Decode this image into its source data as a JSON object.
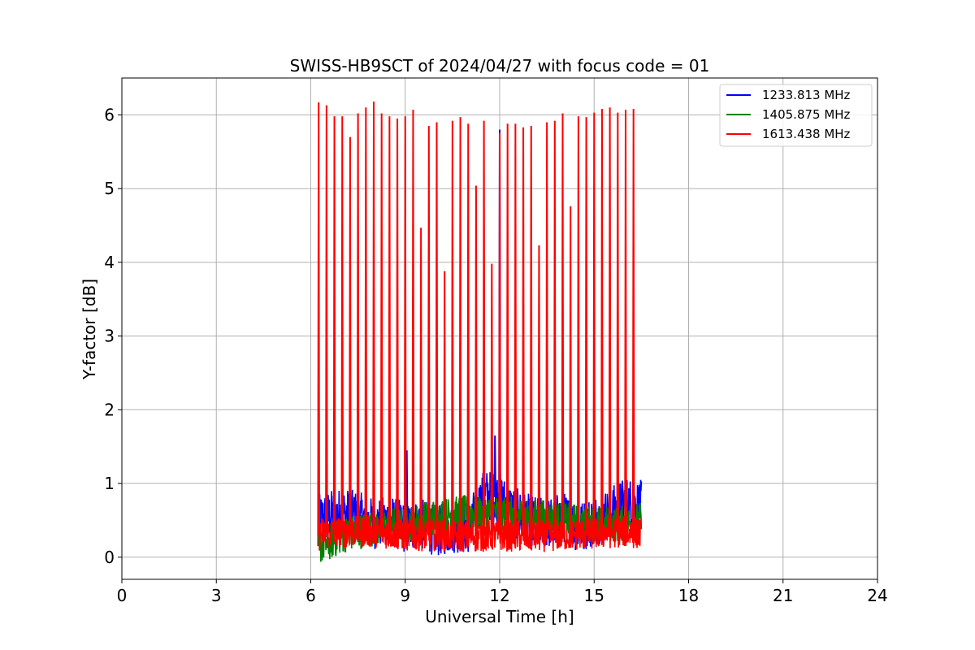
{
  "chart_data": {
    "type": "line",
    "title": "SWISS-HB9SCT of 2024/04/27 with focus code = 01",
    "xlabel": "Universal Time [h]",
    "ylabel": "Y-factor [dB]",
    "xlim": [
      0,
      24
    ],
    "ylim": [
      -0.3,
      6.5
    ],
    "xticks": [
      0,
      3,
      6,
      9,
      12,
      15,
      18,
      21,
      24
    ],
    "yticks": [
      0,
      1,
      2,
      3,
      4,
      5,
      6
    ],
    "grid": true,
    "legend_position": "top-right",
    "data_range": [
      6.25,
      16.5
    ],
    "series": [
      {
        "name": "1233.813 MHz",
        "color": "#0000ff",
        "profile": [
          [
            6.25,
            0.5
          ],
          [
            6.5,
            0.55
          ],
          [
            7.0,
            0.6
          ],
          [
            7.5,
            0.55
          ],
          [
            8.0,
            0.45
          ],
          [
            8.5,
            0.5
          ],
          [
            9.0,
            0.4
          ],
          [
            9.5,
            0.45
          ],
          [
            10.0,
            0.35
          ],
          [
            10.5,
            0.4
          ],
          [
            11.0,
            0.4
          ],
          [
            11.5,
            0.85
          ],
          [
            12.0,
            0.8
          ],
          [
            12.5,
            0.6
          ],
          [
            13.0,
            0.5
          ],
          [
            13.5,
            0.45
          ],
          [
            14.0,
            0.55
          ],
          [
            14.5,
            0.4
          ],
          [
            15.0,
            0.5
          ],
          [
            15.5,
            0.6
          ],
          [
            16.0,
            0.75
          ],
          [
            16.5,
            0.7
          ]
        ],
        "spread": 0.35,
        "spikes": [
          {
            "x": 12.0,
            "y": 5.8
          },
          {
            "x": 11.85,
            "y": 1.65
          },
          {
            "x": 9.05,
            "y": 1.45
          }
        ]
      },
      {
        "name": "1405.875 MHz",
        "color": "#008000",
        "profile": [
          [
            6.25,
            0.15
          ],
          [
            6.6,
            0.2
          ],
          [
            7.0,
            0.3
          ],
          [
            8.0,
            0.4
          ],
          [
            9.0,
            0.45
          ],
          [
            10.0,
            0.55
          ],
          [
            11.0,
            0.6
          ],
          [
            12.0,
            0.6
          ],
          [
            13.0,
            0.55
          ],
          [
            14.0,
            0.5
          ],
          [
            15.0,
            0.45
          ],
          [
            16.0,
            0.45
          ],
          [
            16.5,
            0.5
          ]
        ],
        "spread": 0.25,
        "spikes": [
          {
            "x": 6.25,
            "y": 1.3
          }
        ]
      },
      {
        "name": "1613.438 MHz",
        "color": "#ff0000",
        "profile": [
          [
            6.25,
            0.3
          ],
          [
            7.0,
            0.35
          ],
          [
            8.0,
            0.35
          ],
          [
            9.0,
            0.3
          ],
          [
            10.0,
            0.3
          ],
          [
            11.0,
            0.28
          ],
          [
            12.0,
            0.3
          ],
          [
            13.0,
            0.28
          ],
          [
            14.0,
            0.3
          ],
          [
            15.0,
            0.32
          ],
          [
            16.0,
            0.35
          ],
          [
            16.5,
            0.32
          ]
        ],
        "spread": 0.22,
        "spikes": [
          {
            "x": 6.25,
            "y": 6.17
          },
          {
            "x": 6.5,
            "y": 6.13
          },
          {
            "x": 6.75,
            "y": 5.98
          },
          {
            "x": 7.0,
            "y": 5.98
          },
          {
            "x": 7.25,
            "y": 5.7
          },
          {
            "x": 7.5,
            "y": 6.02
          },
          {
            "x": 7.75,
            "y": 6.1
          },
          {
            "x": 8.0,
            "y": 6.18
          },
          {
            "x": 8.25,
            "y": 6.02
          },
          {
            "x": 8.5,
            "y": 5.98
          },
          {
            "x": 8.75,
            "y": 5.95
          },
          {
            "x": 9.0,
            "y": 5.98
          },
          {
            "x": 9.25,
            "y": 6.07
          },
          {
            "x": 9.5,
            "y": 4.47
          },
          {
            "x": 9.75,
            "y": 5.85
          },
          {
            "x": 10.0,
            "y": 5.9
          },
          {
            "x": 10.25,
            "y": 3.88
          },
          {
            "x": 10.5,
            "y": 5.92
          },
          {
            "x": 10.75,
            "y": 5.97
          },
          {
            "x": 11.0,
            "y": 5.88
          },
          {
            "x": 11.25,
            "y": 5.04
          },
          {
            "x": 11.5,
            "y": 5.92
          },
          {
            "x": 11.75,
            "y": 3.98
          },
          {
            "x": 12.0,
            "y": 5.75
          },
          {
            "x": 12.25,
            "y": 5.88
          },
          {
            "x": 12.5,
            "y": 5.88
          },
          {
            "x": 12.75,
            "y": 5.83
          },
          {
            "x": 13.0,
            "y": 5.85
          },
          {
            "x": 13.25,
            "y": 4.23
          },
          {
            "x": 13.5,
            "y": 5.9
          },
          {
            "x": 13.75,
            "y": 5.92
          },
          {
            "x": 14.0,
            "y": 6.02
          },
          {
            "x": 14.25,
            "y": 4.76
          },
          {
            "x": 14.5,
            "y": 5.98
          },
          {
            "x": 14.75,
            "y": 5.97
          },
          {
            "x": 15.0,
            "y": 6.03
          },
          {
            "x": 15.25,
            "y": 6.08
          },
          {
            "x": 15.5,
            "y": 6.1
          },
          {
            "x": 15.75,
            "y": 6.03
          },
          {
            "x": 16.0,
            "y": 6.07
          },
          {
            "x": 16.25,
            "y": 6.08
          }
        ]
      }
    ]
  }
}
